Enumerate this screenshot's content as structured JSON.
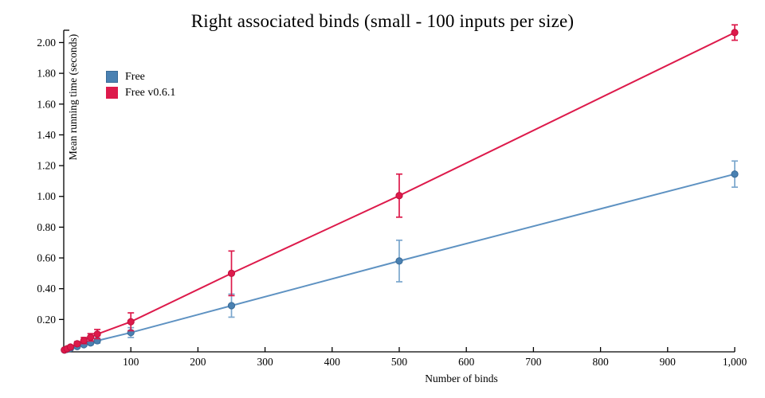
{
  "title": "Right associated binds (small - 100 inputs per size)",
  "chart_data": {
    "type": "line",
    "title": "Right associated binds (small - 100 inputs per size)",
    "xlabel": "Number of binds",
    "ylabel": "Mean running time (seconds)",
    "x": [
      1,
      5,
      10,
      20,
      30,
      40,
      50,
      100,
      250,
      500,
      1000
    ],
    "series": [
      {
        "name": "Free",
        "values": [
          0.001,
          0.006,
          0.012,
          0.024,
          0.036,
          0.048,
          0.062,
          0.115,
          0.29,
          0.58,
          1.145
        ],
        "errors": [
          0.001,
          0.003,
          0.006,
          0.008,
          0.01,
          0.013,
          0.016,
          0.032,
          0.075,
          0.135,
          0.085
        ],
        "line_color": "#5e92c2",
        "fill_color": "#4a81b2",
        "stroke_color": "#3a6b97",
        "errbar_color": "#7aa6cd"
      },
      {
        "name": "Free v0.6.1",
        "values": [
          0.002,
          0.01,
          0.021,
          0.042,
          0.063,
          0.084,
          0.105,
          0.185,
          0.5,
          1.005,
          2.065
        ],
        "errors": [
          0.001,
          0.004,
          0.008,
          0.014,
          0.02,
          0.024,
          0.03,
          0.058,
          0.145,
          0.14,
          0.05
        ],
        "line_color": "#dd1a4b",
        "fill_color": "#dd1a4b",
        "stroke_color": "#c0103d",
        "errbar_color": "#dd1a4b"
      }
    ],
    "xticks": [
      100,
      200,
      300,
      400,
      500,
      600,
      700,
      800,
      900,
      1000
    ],
    "xtick_labels": [
      "100",
      "200",
      "300",
      "400",
      "500",
      "600",
      "700",
      "800",
      "900",
      "1,000"
    ],
    "yticks": [
      0.2,
      0.4,
      0.6,
      0.8,
      1.0,
      1.2,
      1.4,
      1.6,
      1.8,
      2.0
    ],
    "ytick_labels": [
      "0.20",
      "0.40",
      "0.60",
      "0.80",
      "1.00",
      "1.20",
      "1.40",
      "1.60",
      "1.80",
      "2.00"
    ],
    "xlim": [
      0,
      1000
    ],
    "ylim": [
      0,
      2.08
    ],
    "grid": false,
    "legend_position": "top-left",
    "axis_color": "#000000"
  }
}
